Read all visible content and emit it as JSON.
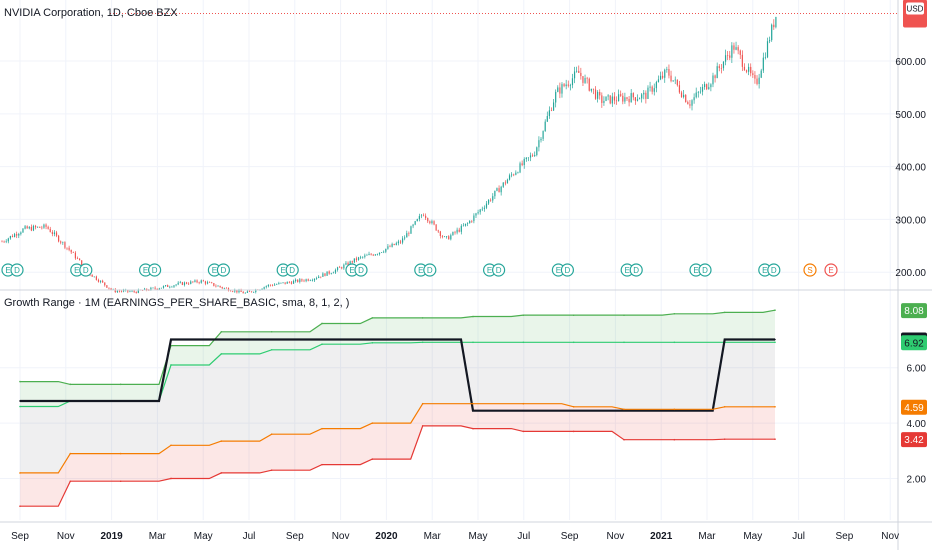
{
  "header": {
    "symbol_title": "NVIDIA Corporation, 1D, Cboe BZX",
    "currency_label": "USD"
  },
  "indicator": {
    "title": "Growth Range · 1M (EARNINGS_PER_SHARE_BASIC, sma, 8, 1, 2, )"
  },
  "colors": {
    "up": "#26a69a",
    "down": "#ef5350",
    "green": "#4caf50",
    "teal": "#2ecc71",
    "black": "#131722",
    "orange": "#f57c00",
    "red": "#e53935"
  },
  "chart_data": [
    {
      "type": "candlestick",
      "title": "NVIDIA Corporation, 1D, Cboe BZX",
      "ylabel": "USD",
      "ylim": [
        172,
        708
      ],
      "y_ticks": [
        200,
        300,
        400,
        500,
        600
      ],
      "y_tick_labels": [
        "200.00",
        "300.00",
        "400.00",
        "500.00",
        "600.00"
      ],
      "close_approx": [
        {
          "month": 0,
          "price": 258
        },
        {
          "month": 1,
          "price": 282
        },
        {
          "month": 2,
          "price": 286
        },
        {
          "month": 3,
          "price": 244
        },
        {
          "month": 4,
          "price": 196
        },
        {
          "month": 5,
          "price": 165
        },
        {
          "month": 6,
          "price": 163
        },
        {
          "month": 7,
          "price": 170
        },
        {
          "month": 8,
          "price": 178
        },
        {
          "month": 9,
          "price": 183
        },
        {
          "month": 10,
          "price": 170
        },
        {
          "month": 11,
          "price": 160
        },
        {
          "month": 12,
          "price": 175
        },
        {
          "month": 13,
          "price": 181
        },
        {
          "month": 14,
          "price": 188
        },
        {
          "month": 15,
          "price": 203
        },
        {
          "month": 16,
          "price": 225
        },
        {
          "month": 17,
          "price": 238
        },
        {
          "month": 18,
          "price": 258
        },
        {
          "month": 19,
          "price": 312
        },
        {
          "month": 20,
          "price": 262
        },
        {
          "month": 21,
          "price": 292
        },
        {
          "month": 22,
          "price": 338
        },
        {
          "month": 23,
          "price": 385
        },
        {
          "month": 24,
          "price": 425
        },
        {
          "month": 25,
          "price": 540
        },
        {
          "month": 26,
          "price": 578
        },
        {
          "month": 27,
          "price": 525
        },
        {
          "month": 28,
          "price": 530
        },
        {
          "month": 29,
          "price": 534
        },
        {
          "month": 30,
          "price": 580
        },
        {
          "month": 31,
          "price": 520
        },
        {
          "month": 32,
          "price": 565
        },
        {
          "month": 33,
          "price": 628
        },
        {
          "month": 34,
          "price": 555
        },
        {
          "month": 35,
          "price": 700
        }
      ],
      "current_price": 690,
      "events": {
        "earnings_dividend_groups": 12,
        "upcoming": [
          {
            "label": "S"
          },
          {
            "label": "E"
          }
        ]
      }
    },
    {
      "type": "line",
      "title": "Growth Range · 1M (EARNINGS_PER_SHARE_BASIC, sma, 8, 1, 2, )",
      "ylim": [
        0.5,
        8.7
      ],
      "y_ticks": [
        2.0,
        4.0,
        6.0
      ],
      "y_tick_labels": [
        "2.00",
        "4.00",
        "6.00"
      ],
      "series": [
        {
          "name": "upper",
          "color": "green",
          "values": [
            5.5,
            5.4,
            5.4,
            6.8,
            7.3,
            7.3,
            7.6,
            7.8,
            7.8,
            7.85,
            7.9,
            7.9,
            7.9,
            7.95,
            8.0,
            8.08
          ]
        },
        {
          "name": "mid_upper",
          "color": "teal",
          "values": [
            4.6,
            4.8,
            4.8,
            6.1,
            6.5,
            6.65,
            6.85,
            6.9,
            6.92,
            6.92,
            6.92,
            6.92,
            6.92,
            6.92,
            6.92,
            6.92
          ]
        },
        {
          "name": "eps",
          "color": "black",
          "values": [
            4.8,
            4.8,
            4.8,
            7.02,
            7.02,
            7.02,
            7.02,
            7.02,
            7.02,
            4.45,
            4.45,
            4.45,
            4.45,
            4.45,
            7.02,
            7.02
          ]
        },
        {
          "name": "mid_lower",
          "color": "orange",
          "values": [
            2.2,
            2.9,
            2.9,
            3.2,
            3.35,
            3.6,
            3.8,
            4.0,
            4.7,
            4.7,
            4.7,
            4.59,
            4.5,
            4.5,
            4.59,
            4.59
          ]
        },
        {
          "name": "lower",
          "color": "red",
          "values": [
            1.0,
            1.9,
            1.9,
            2.0,
            2.2,
            2.3,
            2.5,
            2.7,
            3.9,
            3.8,
            3.7,
            3.7,
            3.4,
            3.4,
            3.42,
            3.42
          ]
        }
      ],
      "last_value_labels": [
        {
          "series": "upper",
          "label": "8.08"
        },
        {
          "series": "eps",
          "label": "7.02"
        },
        {
          "series": "mid_upper",
          "label": "6.92"
        },
        {
          "series": "mid_lower",
          "label": "4.59"
        },
        {
          "series": "lower",
          "label": "3.42"
        }
      ]
    }
  ],
  "time_axis": {
    "labels": [
      "Sep",
      "Nov",
      "2019",
      "Mar",
      "May",
      "Jul",
      "Sep",
      "Nov",
      "2020",
      "Mar",
      "May",
      "Jul",
      "Sep",
      "Nov",
      "2021",
      "Mar",
      "May",
      "Jul",
      "Sep",
      "Nov"
    ],
    "bold": [
      "2019",
      "2020",
      "2021"
    ]
  },
  "current_price_label": "USD"
}
